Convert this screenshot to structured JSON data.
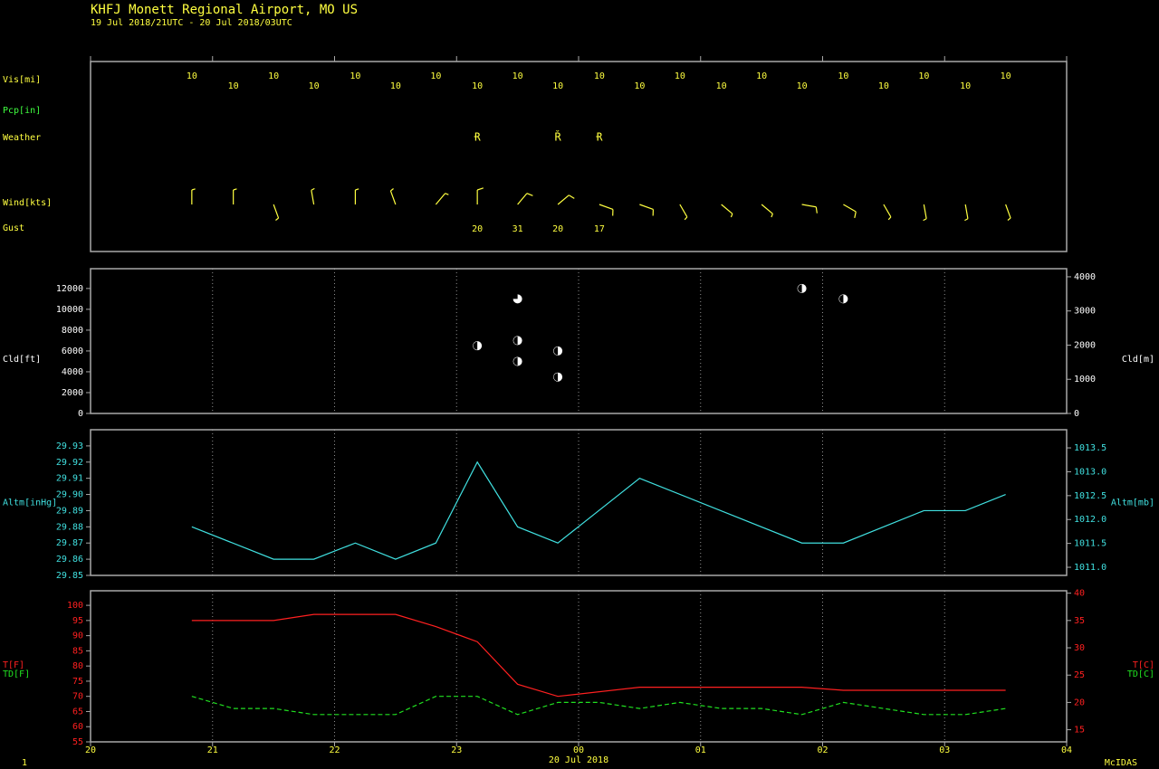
{
  "header": {
    "title": "KHFJ  Monett Regional Airport, MO US",
    "subtitle": "19 Jul 2018/21UTC - 20 Jul 2018/03UTC"
  },
  "footer": {
    "left": "1",
    "right": "McIDAS"
  },
  "chart_data": [
    {
      "type": "station-obs",
      "x": [
        0.83,
        1.17,
        1.5,
        1.83,
        2.17,
        2.5,
        2.83,
        3.17,
        3.5,
        3.83,
        4.17,
        4.5,
        4.83,
        5.17,
        5.5,
        5.83,
        6.17,
        6.5,
        6.83,
        7.17,
        7.5
      ],
      "visibility": {
        "label": "Vis[mi]",
        "color": "#ffff40",
        "values": [
          10,
          10,
          10,
          10,
          10,
          10,
          10,
          10,
          10,
          10,
          10,
          10,
          10,
          10,
          10,
          10,
          10,
          10,
          10,
          10,
          10
        ]
      },
      "precipitation": {
        "label": "Pcp[in]",
        "color": "#40ff40"
      },
      "weather": {
        "label": "Weather",
        "color": "#ffff40",
        "values": [
          null,
          null,
          null,
          null,
          null,
          null,
          null,
          "Ɍ",
          null,
          "Ř",
          "Ɍ",
          null,
          null,
          null,
          null,
          null,
          null,
          null,
          null,
          null,
          null
        ]
      },
      "wind": {
        "label": "Wind[kts]",
        "color": "#ffff40",
        "direction": [
          360,
          360,
          160,
          350,
          360,
          340,
          40,
          360,
          40,
          50,
          110,
          110,
          150,
          130,
          130,
          100,
          120,
          150,
          170,
          170,
          160
        ],
        "speed": [
          5,
          5,
          5,
          5,
          5,
          5,
          5,
          10,
          10,
          10,
          10,
          10,
          5,
          5,
          5,
          10,
          10,
          5,
          5,
          5,
          5
        ]
      },
      "gust": {
        "label": "Gust",
        "color": "#ffff40",
        "values": [
          null,
          null,
          null,
          null,
          null,
          null,
          null,
          20,
          31,
          20,
          17,
          null,
          null,
          null,
          null,
          null,
          null,
          null,
          null,
          null,
          null
        ]
      }
    },
    {
      "type": "cloud",
      "y_label": "Cld[ft]",
      "y2_label": "Cld[m]",
      "color": "#ffffff",
      "axis_color": "#ffffff",
      "grid": true,
      "x": [
        3.17,
        3.5,
        3.5,
        3.5,
        3.83,
        3.83,
        5.83,
        6.17
      ],
      "values": [
        6500,
        11000,
        7000,
        5000,
        6000,
        3500,
        12000,
        11000
      ],
      "cover": [
        4,
        6,
        4,
        4,
        4,
        4,
        4,
        4
      ],
      "ylim": [
        0,
        13900
      ],
      "yticks": [
        0,
        2000,
        4000,
        6000,
        8000,
        10000,
        12000
      ],
      "y2lim": [
        0,
        4237
      ],
      "y2ticks": [
        0,
        1000,
        2000,
        3000,
        4000
      ]
    },
    {
      "type": "line",
      "y_label": "Altm[inHg]",
      "y2_label": "Altm[mb]",
      "axis_color": "#40e0e0",
      "grid": true,
      "series": [
        {
          "color": "#40e0e0",
          "x": [
            0.83,
            1.5,
            1.83,
            2.17,
            2.5,
            2.83,
            3.17,
            3.5,
            3.83,
            4.5,
            5.83,
            6.17,
            6.83,
            7.17,
            7.5
          ],
          "values": [
            29.88,
            29.86,
            29.86,
            29.87,
            29.86,
            29.87,
            29.92,
            29.88,
            29.87,
            29.91,
            29.87,
            29.87,
            29.89,
            29.89,
            29.9
          ]
        }
      ],
      "ylim": [
        29.85,
        29.94
      ],
      "yticks": [
        29.85,
        29.86,
        29.87,
        29.88,
        29.89,
        {
          "value": 29.9,
          "label": "29.90"
        },
        29.91,
        29.92,
        29.93
      ],
      "y2lim": [
        1010.83,
        1013.88
      ],
      "y2ticks": [
        {
          "value": 1011,
          "label": "1011.0"
        },
        1011.5,
        {
          "value": 1012,
          "label": "1012.0"
        },
        1012.5,
        {
          "value": 1013,
          "label": "1013.0"
        },
        1013.5
      ]
    },
    {
      "type": "line",
      "axis_color": "#ff2020",
      "grid": true,
      "x_label": "20 Jul 2018",
      "xlim": [
        0,
        8
      ],
      "xticks": [
        {
          "value": 0,
          "label": "20"
        },
        {
          "value": 1,
          "label": "21"
        },
        {
          "value": 2,
          "label": "22"
        },
        {
          "value": 3,
          "label": "23"
        },
        {
          "value": 4,
          "label": "00"
        },
        {
          "value": 5,
          "label": "01"
        },
        {
          "value": 6,
          "label": "02"
        },
        {
          "value": 7,
          "label": "03"
        },
        {
          "value": 8,
          "label": "04"
        }
      ],
      "series": [
        {
          "name": "T[F]",
          "y2_name": "T[C]",
          "color": "#ff2020",
          "x": [
            0.83,
            1.5,
            1.83,
            2.5,
            2.83,
            3.17,
            3.5,
            3.83,
            4.5,
            5.83,
            6.17,
            7.5
          ],
          "values": [
            95,
            95,
            97,
            97,
            93,
            88,
            74,
            70,
            73,
            73,
            72,
            72
          ]
        },
        {
          "name": "TD[F]",
          "y2_name": "TD[C]",
          "color": "#20e020",
          "dashed": true,
          "x": [
            0.83,
            1.17,
            1.5,
            1.83,
            2.17,
            2.5,
            2.83,
            3.17,
            3.5,
            3.83,
            4.17,
            4.5,
            4.83,
            5.17,
            5.5,
            5.83,
            6.17,
            6.5,
            6.83,
            7.17,
            7.5
          ],
          "values": [
            70,
            66,
            66,
            64,
            64,
            64,
            70,
            70,
            64,
            68,
            68,
            66,
            68,
            66,
            66,
            64,
            68,
            66,
            64,
            64,
            66
          ]
        }
      ],
      "ylim": [
        55,
        104.8
      ],
      "yticks": [
        55,
        60,
        65,
        70,
        75,
        80,
        85,
        90,
        95,
        100
      ],
      "y2lim": [
        12.78,
        40.44
      ],
      "y2ticks": [
        15,
        20,
        25,
        30,
        35,
        40
      ]
    }
  ]
}
